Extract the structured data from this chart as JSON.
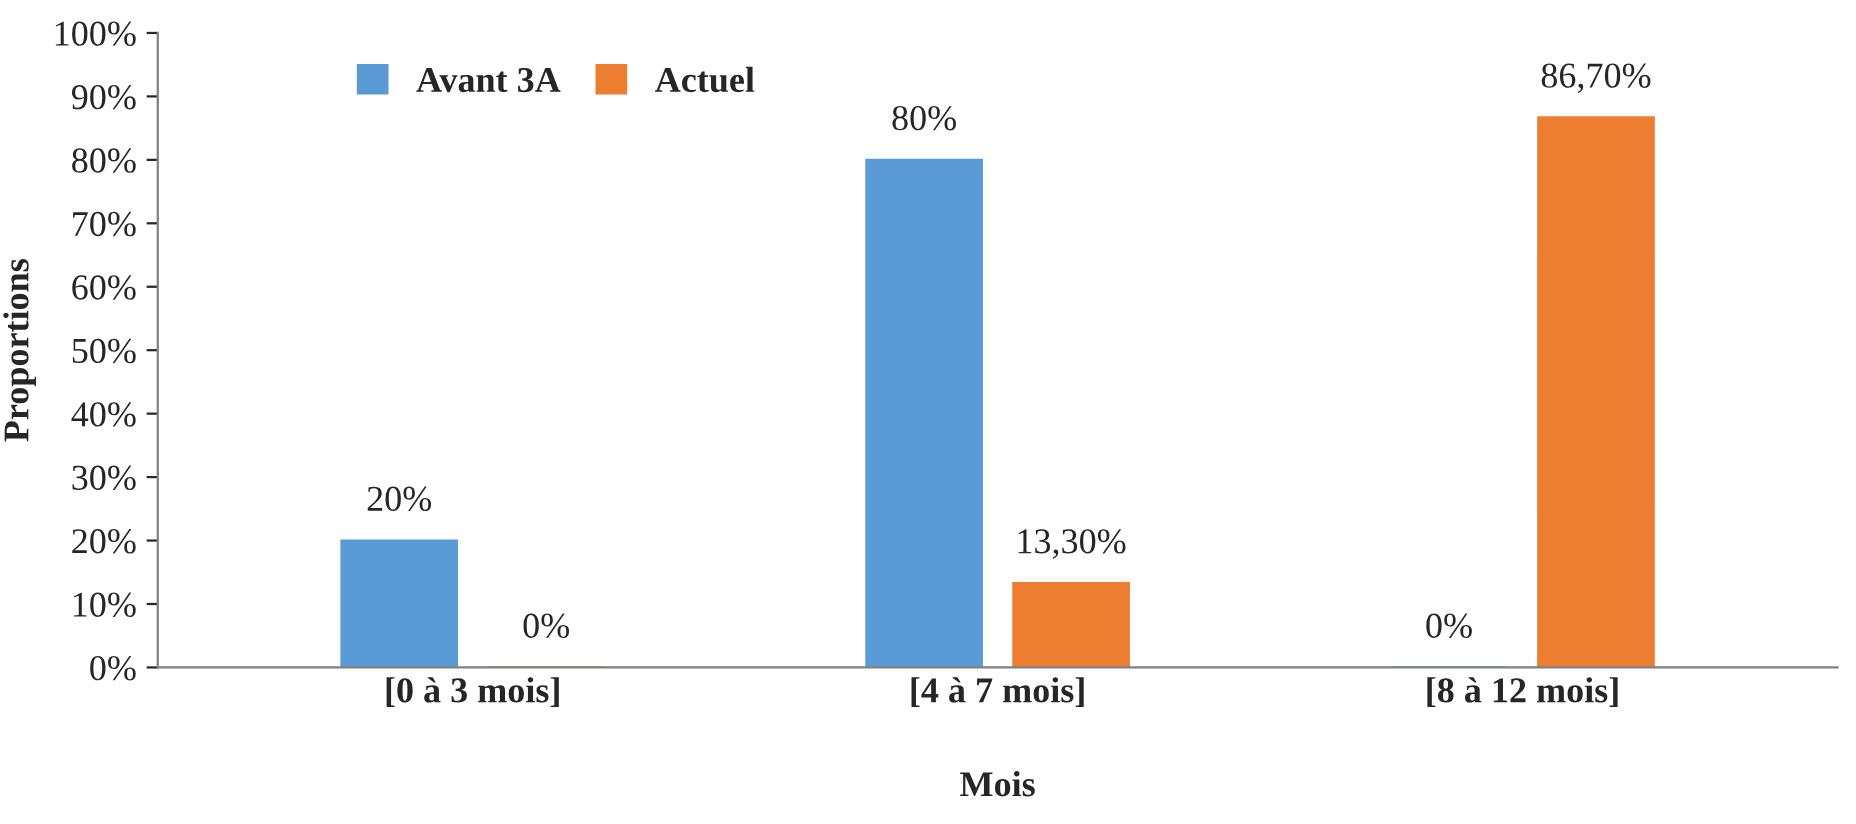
{
  "chart_data": {
    "type": "bar",
    "xlabel": "Mois",
    "ylabel": "Proportions",
    "categories": [
      "[0 à 3 mois]",
      "[4 à 7 mois]",
      "[8 à 12 mois]"
    ],
    "series": [
      {
        "name": "Avant 3A",
        "color": "#5b9bd5",
        "values": [
          20,
          80,
          0
        ],
        "value_labels": [
          "20%",
          "80%",
          "0%"
        ]
      },
      {
        "name": "Actuel",
        "color": "#ed7d31",
        "values": [
          0,
          13.3,
          86.7
        ],
        "value_labels": [
          "0%",
          "13,30%",
          "86,70%"
        ]
      }
    ],
    "ylim": [
      0,
      100
    ],
    "yticks": [
      {
        "value": 0,
        "label": "0%"
      },
      {
        "value": 10,
        "label": "10%"
      },
      {
        "value": 20,
        "label": "20%"
      },
      {
        "value": 30,
        "label": "30%"
      },
      {
        "value": 40,
        "label": "40%"
      },
      {
        "value": 50,
        "label": "50%"
      },
      {
        "value": 60,
        "label": "60%"
      },
      {
        "value": 70,
        "label": "70%"
      },
      {
        "value": 80,
        "label": "80%"
      },
      {
        "value": 90,
        "label": "90%"
      },
      {
        "value": 100,
        "label": "100%"
      }
    ],
    "grid": false,
    "legend": "top left"
  }
}
